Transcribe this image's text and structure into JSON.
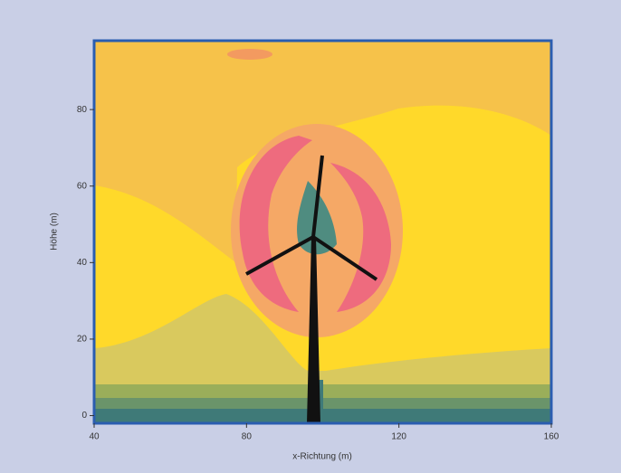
{
  "chart_data": {
    "type": "contour",
    "xlabel": "x-Richtung (m)",
    "ylabel": "Höhe (m)",
    "xlim": [
      40,
      160
    ],
    "xticks": [
      40,
      80,
      120,
      160
    ],
    "ylim": [
      -2,
      98
    ],
    "yticks": [
      0,
      20,
      40,
      60,
      80
    ]
  }
}
